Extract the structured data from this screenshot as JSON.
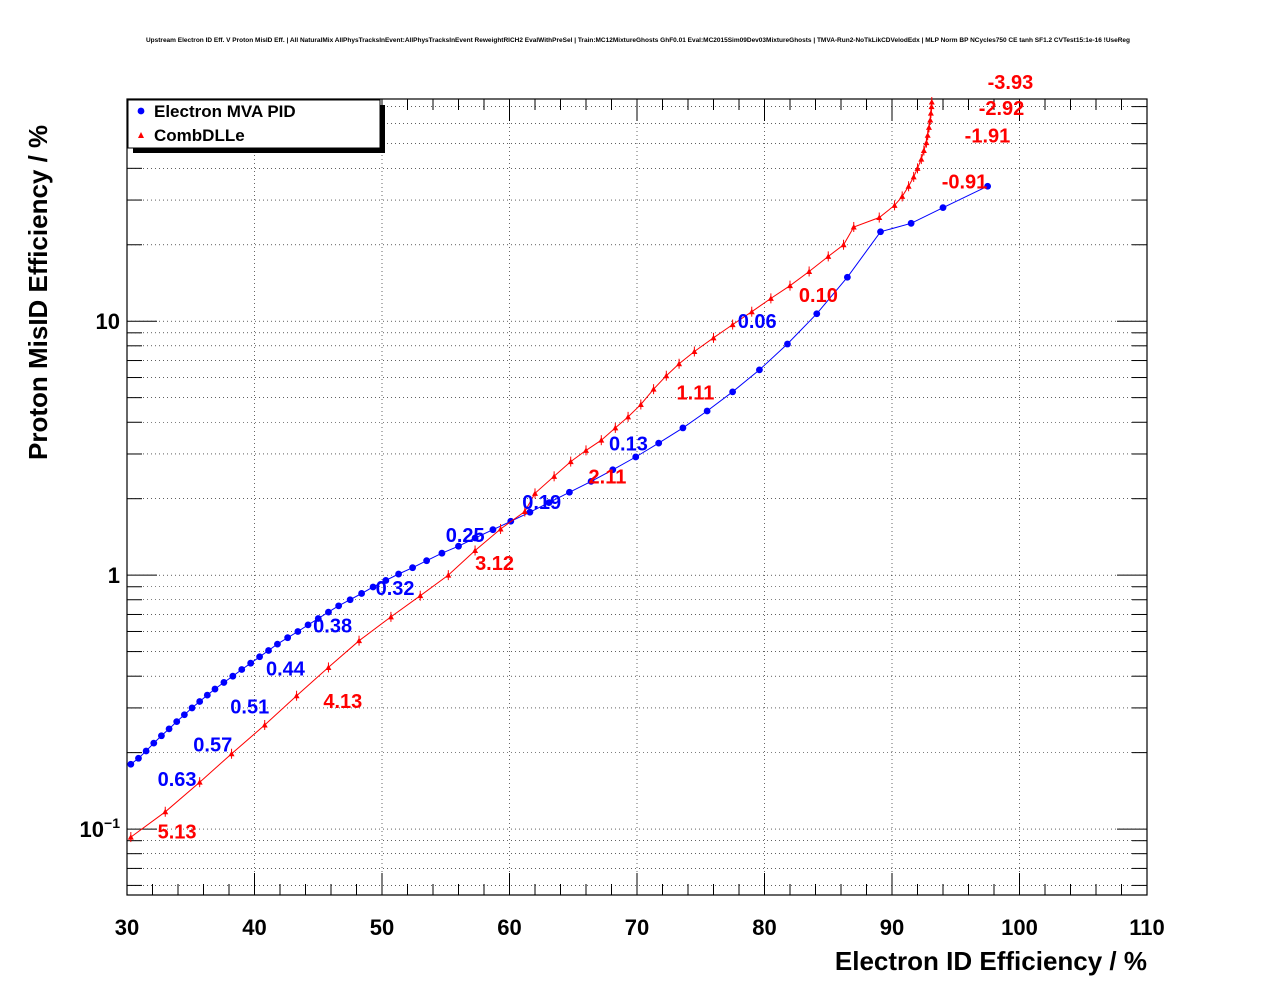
{
  "chart_data": {
    "type": "scatter",
    "title": "Upstream Electron ID Eff. V Proton MisID Eff. | All NaturalMix AllPhysTracksInEvent:AllPhysTracksInEvent ReweightRICH2 EvalWithPreSel | Train:MC12MixtureGhosts GhF0.01 Eval:MC2015Sim09Dev03MixtureGhosts | TMVA-Run2-NoTkLikCDVelodEdx | MLP Norm BP NCycles750 CE tanh SF1.2 CVTest15:1e-16 !UseReg",
    "xlabel": "Electron ID Efficiency / %",
    "ylabel": "Proton MisID Efficiency / %",
    "xlim": [
      30,
      110
    ],
    "ylim": [
      0.055,
      75
    ],
    "yscale": "log",
    "grid": true,
    "legend_position": "top-left",
    "x_ticks": [
      "30",
      "40",
      "50",
      "60",
      "70",
      "80",
      "90",
      "100",
      "110"
    ],
    "y_ticks": [
      {
        "value": 0.1,
        "base": "10",
        "exp": "−1"
      },
      {
        "value": 1,
        "label": "1"
      },
      {
        "value": 10,
        "label": "10"
      }
    ],
    "series": [
      {
        "name": "Electron MVA PID",
        "color": "#0000ff",
        "marker": "circle",
        "points": [
          [
            30.3,
            0.18
          ],
          [
            30.9,
            0.19
          ],
          [
            31.5,
            0.203
          ],
          [
            32.1,
            0.218
          ],
          [
            32.7,
            0.233
          ],
          [
            33.3,
            0.248
          ],
          [
            33.9,
            0.265
          ],
          [
            34.5,
            0.282
          ],
          [
            35.1,
            0.3
          ],
          [
            35.7,
            0.318
          ],
          [
            36.3,
            0.337
          ],
          [
            36.9,
            0.356
          ],
          [
            37.6,
            0.378
          ],
          [
            38.3,
            0.4
          ],
          [
            39.0,
            0.425
          ],
          [
            39.7,
            0.45
          ],
          [
            40.4,
            0.477
          ],
          [
            41.1,
            0.505
          ],
          [
            41.8,
            0.535
          ],
          [
            42.6,
            0.567
          ],
          [
            43.4,
            0.6
          ],
          [
            44.2,
            0.637
          ],
          [
            45.0,
            0.675
          ],
          [
            45.8,
            0.715
          ],
          [
            46.6,
            0.757
          ],
          [
            47.5,
            0.8
          ],
          [
            48.4,
            0.847
          ],
          [
            49.3,
            0.898
          ],
          [
            50.3,
            0.953
          ],
          [
            51.3,
            1.01
          ],
          [
            52.4,
            1.07
          ],
          [
            53.5,
            1.14
          ],
          [
            54.7,
            1.22
          ],
          [
            56.0,
            1.3
          ],
          [
            57.3,
            1.4
          ],
          [
            58.7,
            1.51
          ],
          [
            60.1,
            1.63
          ],
          [
            61.6,
            1.77
          ],
          [
            63.1,
            1.93
          ],
          [
            64.7,
            2.12
          ],
          [
            66.4,
            2.34
          ],
          [
            68.1,
            2.6
          ],
          [
            69.9,
            2.92
          ],
          [
            71.7,
            3.31
          ],
          [
            73.6,
            3.8
          ],
          [
            75.5,
            4.43
          ],
          [
            77.5,
            5.27
          ],
          [
            79.6,
            6.43
          ],
          [
            81.8,
            8.13
          ],
          [
            84.1,
            10.7
          ],
          [
            86.5,
            14.9
          ],
          [
            89.1,
            22.5
          ],
          [
            91.5,
            24.3
          ],
          [
            94.0,
            28.0
          ],
          [
            97.5,
            34.0
          ]
        ]
      },
      {
        "name": "CombDLLe",
        "color": "#ff0000",
        "marker": "triangle",
        "points": [
          [
            30.3,
            0.093
          ],
          [
            33.0,
            0.117
          ],
          [
            35.7,
            0.153
          ],
          [
            38.2,
            0.198
          ],
          [
            40.8,
            0.257
          ],
          [
            43.3,
            0.335
          ],
          [
            45.8,
            0.433
          ],
          [
            48.2,
            0.552
          ],
          [
            50.7,
            0.685
          ],
          [
            53.0,
            0.83
          ],
          [
            55.2,
            1.0
          ],
          [
            57.3,
            1.25
          ],
          [
            59.3,
            1.52
          ],
          [
            61.2,
            1.78
          ],
          [
            62.0,
            2.1
          ],
          [
            63.5,
            2.45
          ],
          [
            64.8,
            2.8
          ],
          [
            66.0,
            3.1
          ],
          [
            67.2,
            3.4
          ],
          [
            68.3,
            3.8
          ],
          [
            69.3,
            4.2
          ],
          [
            70.3,
            4.7
          ],
          [
            71.3,
            5.4
          ],
          [
            72.3,
            6.1
          ],
          [
            73.3,
            6.8
          ],
          [
            74.5,
            7.6
          ],
          [
            76.0,
            8.6
          ],
          [
            77.5,
            9.7
          ],
          [
            79.0,
            10.9
          ],
          [
            80.5,
            12.3
          ],
          [
            82.0,
            13.8
          ],
          [
            83.5,
            15.7
          ],
          [
            85.0,
            18.0
          ],
          [
            86.2,
            20.0
          ],
          [
            87.0,
            23.5
          ],
          [
            89.0,
            25.6
          ],
          [
            90.2,
            28.6
          ],
          [
            90.8,
            31.0
          ],
          [
            91.3,
            34.0
          ],
          [
            91.7,
            37.0
          ],
          [
            92.0,
            40.0
          ],
          [
            92.3,
            43.5
          ],
          [
            92.5,
            47.0
          ],
          [
            92.7,
            50.5
          ],
          [
            92.8,
            54.0
          ],
          [
            92.9,
            58.0
          ],
          [
            93.0,
            62.0
          ],
          [
            93.05,
            66.0
          ],
          [
            93.1,
            70.0
          ],
          [
            93.12,
            73.0
          ]
        ]
      }
    ],
    "annotations": [
      {
        "text": "0.63",
        "x": 32.4,
        "y": 0.148,
        "color": "#0000ff"
      },
      {
        "text": "0.57",
        "x": 35.2,
        "y": 0.202,
        "color": "#0000ff"
      },
      {
        "text": "0.51",
        "x": 38.1,
        "y": 0.285,
        "color": "#0000ff"
      },
      {
        "text": "0.44",
        "x": 40.9,
        "y": 0.403,
        "color": "#0000ff"
      },
      {
        "text": "0.38",
        "x": 44.6,
        "y": 0.595,
        "color": "#0000ff"
      },
      {
        "text": "0.32",
        "x": 49.5,
        "y": 0.835,
        "color": "#0000ff"
      },
      {
        "text": "0.25",
        "x": 55.0,
        "y": 1.35,
        "color": "#0000ff"
      },
      {
        "text": "0.19",
        "x": 61.0,
        "y": 1.82,
        "color": "#0000ff"
      },
      {
        "text": "0.13",
        "x": 67.8,
        "y": 3.1,
        "color": "#0000ff"
      },
      {
        "text": "0.06",
        "x": 77.9,
        "y": 9.4,
        "color": "#0000ff"
      },
      {
        "text": "5.13",
        "x": 32.4,
        "y": 0.092,
        "color": "#ff0000"
      },
      {
        "text": "4.13",
        "x": 45.4,
        "y": 0.3,
        "color": "#ff0000"
      },
      {
        "text": "3.12",
        "x": 57.3,
        "y": 1.05,
        "color": "#ff0000"
      },
      {
        "text": "2.11",
        "x": 66.2,
        "y": 2.3,
        "color": "#ff0000"
      },
      {
        "text": "1.11",
        "x": 73.1,
        "y": 4.92,
        "color": "#ff0000"
      },
      {
        "text": "0.10",
        "x": 82.7,
        "y": 11.9,
        "color": "#ff0000"
      },
      {
        "text": "-0.91",
        "x": 93.9,
        "y": 33.3,
        "color": "#ff0000"
      },
      {
        "text": "-1.91",
        "x": 95.7,
        "y": 50.5,
        "color": "#ff0000"
      },
      {
        "text": "-2.92",
        "x": 96.8,
        "y": 65.0,
        "color": "#ff0000"
      },
      {
        "text": "-3.93",
        "x": 97.5,
        "y": 82.0,
        "color": "#ff0000"
      }
    ]
  }
}
